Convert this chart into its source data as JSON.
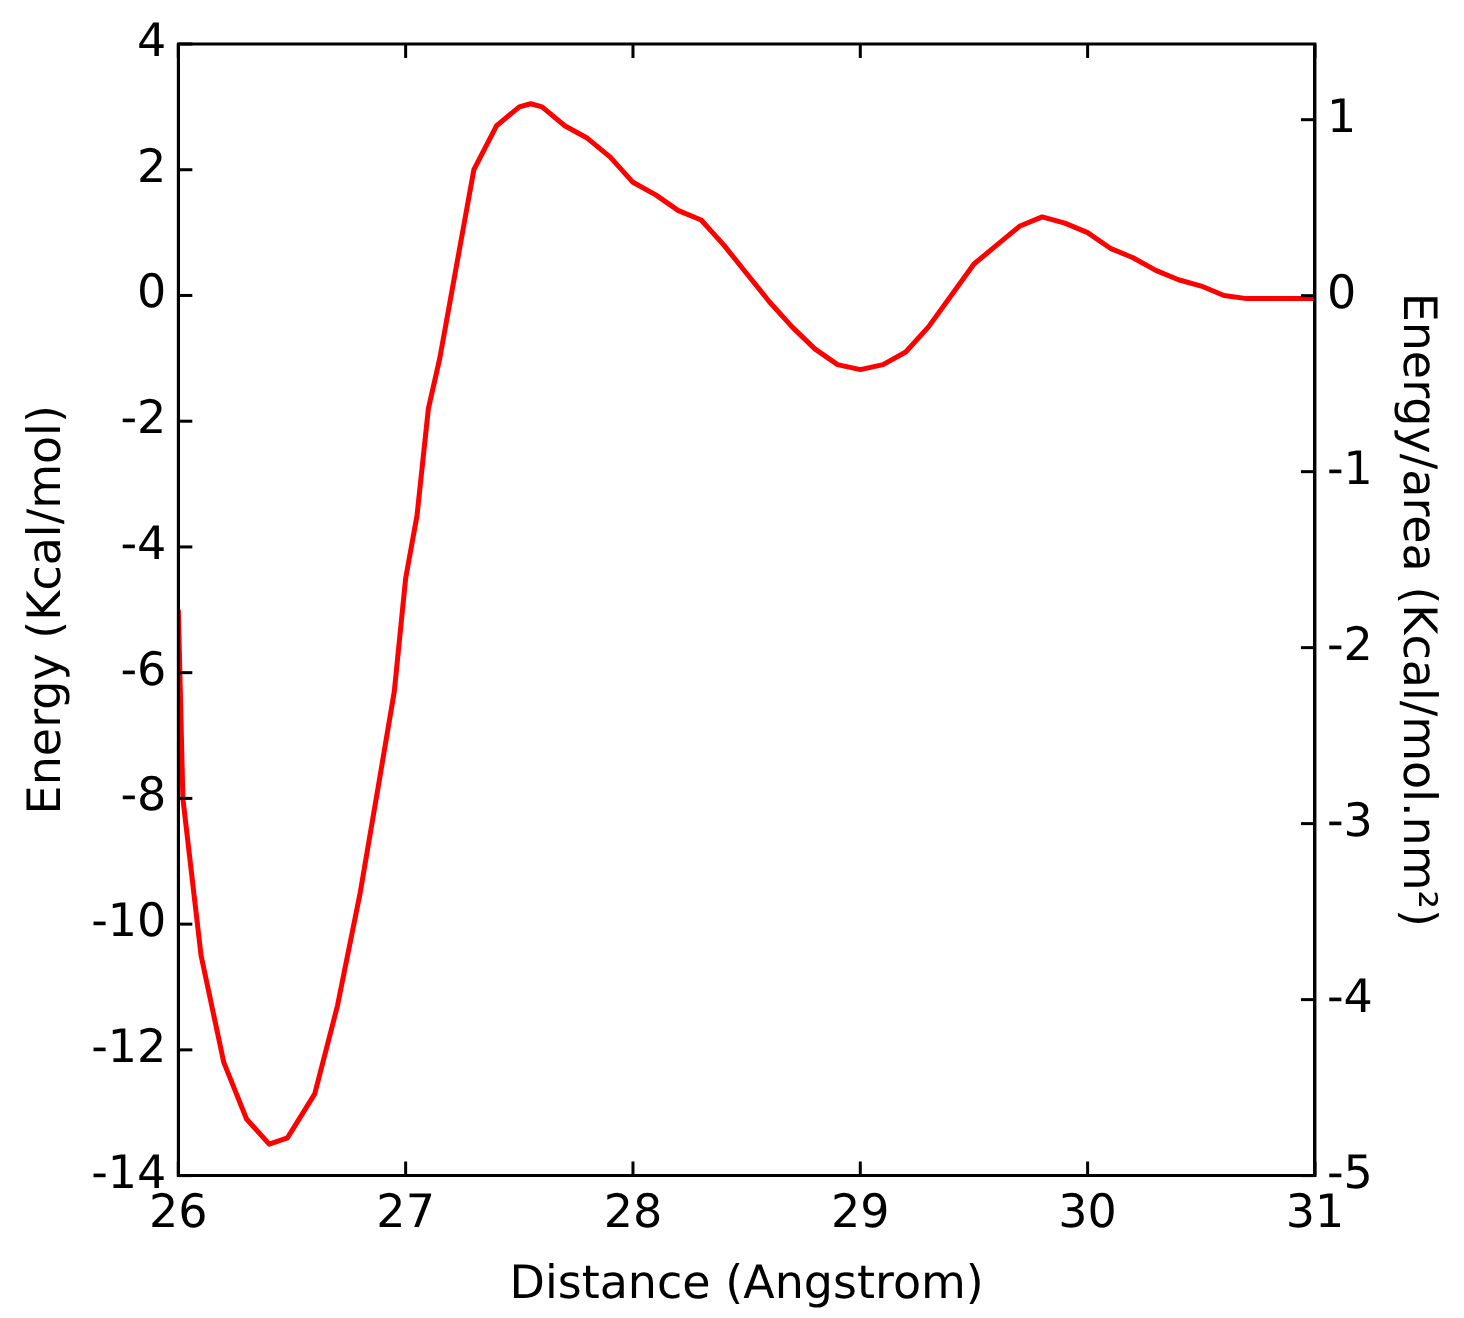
{
  "chart_data": {
    "type": "line",
    "xlabel": "Distance (Angstrom)",
    "ylabel": "Energy (Kcal/mol)",
    "y2label": "Energy/area (Kcal/mol.nm²)",
    "x": [
      26.0,
      26.02,
      26.1,
      26.2,
      26.3,
      26.4,
      26.48,
      26.6,
      26.7,
      26.8,
      26.88,
      26.95,
      27.0,
      27.05,
      27.1,
      27.15,
      27.2,
      27.25,
      27.3,
      27.4,
      27.5,
      27.55,
      27.6,
      27.7,
      27.8,
      27.9,
      28.0,
      28.1,
      28.2,
      28.3,
      28.4,
      28.5,
      28.6,
      28.7,
      28.8,
      28.9,
      29.0,
      29.1,
      29.2,
      29.3,
      29.4,
      29.5,
      29.6,
      29.7,
      29.8,
      29.9,
      30.0,
      30.1,
      30.2,
      30.3,
      30.4,
      30.5,
      30.6,
      30.7,
      31.0
    ],
    "series": [
      {
        "color": "#ff0000",
        "values": [
          -5,
          -8,
          -10.5,
          -12.2,
          -13.1,
          -13.5,
          -13.4,
          -12.7,
          -11.3,
          -9.5,
          -7.8,
          -6.3,
          -4.5,
          -3.5,
          -1.8,
          -1.0,
          0.0,
          1.0,
          2.0,
          2.7,
          3.0,
          3.05,
          3.0,
          2.7,
          2.5,
          2.2,
          1.8,
          1.6,
          1.35,
          1.2,
          0.8,
          0.35,
          -0.1,
          -0.5,
          -0.85,
          -1.1,
          -1.18,
          -1.1,
          -0.9,
          -0.5,
          0.0,
          0.5,
          0.8,
          1.1,
          1.25,
          1.15,
          1.0,
          0.75,
          0.6,
          0.4,
          0.25,
          0.15,
          0.0,
          -0.05,
          -0.05
        ]
      }
    ],
    "xlim": [
      26,
      31
    ],
    "xticks": [
      26,
      27,
      28,
      29,
      30,
      31
    ],
    "ylim": [
      -14,
      4
    ],
    "yticks": [
      -14,
      -12,
      -10,
      -8,
      -6,
      -4,
      -2,
      0,
      2,
      4
    ],
    "y2lim": [
      -5,
      1.43
    ],
    "y2ticks": [
      -5,
      -4,
      -3,
      -2,
      -1,
      0,
      1
    ],
    "grid": false,
    "legend": false,
    "marker": "none",
    "line_style": "solid"
  }
}
